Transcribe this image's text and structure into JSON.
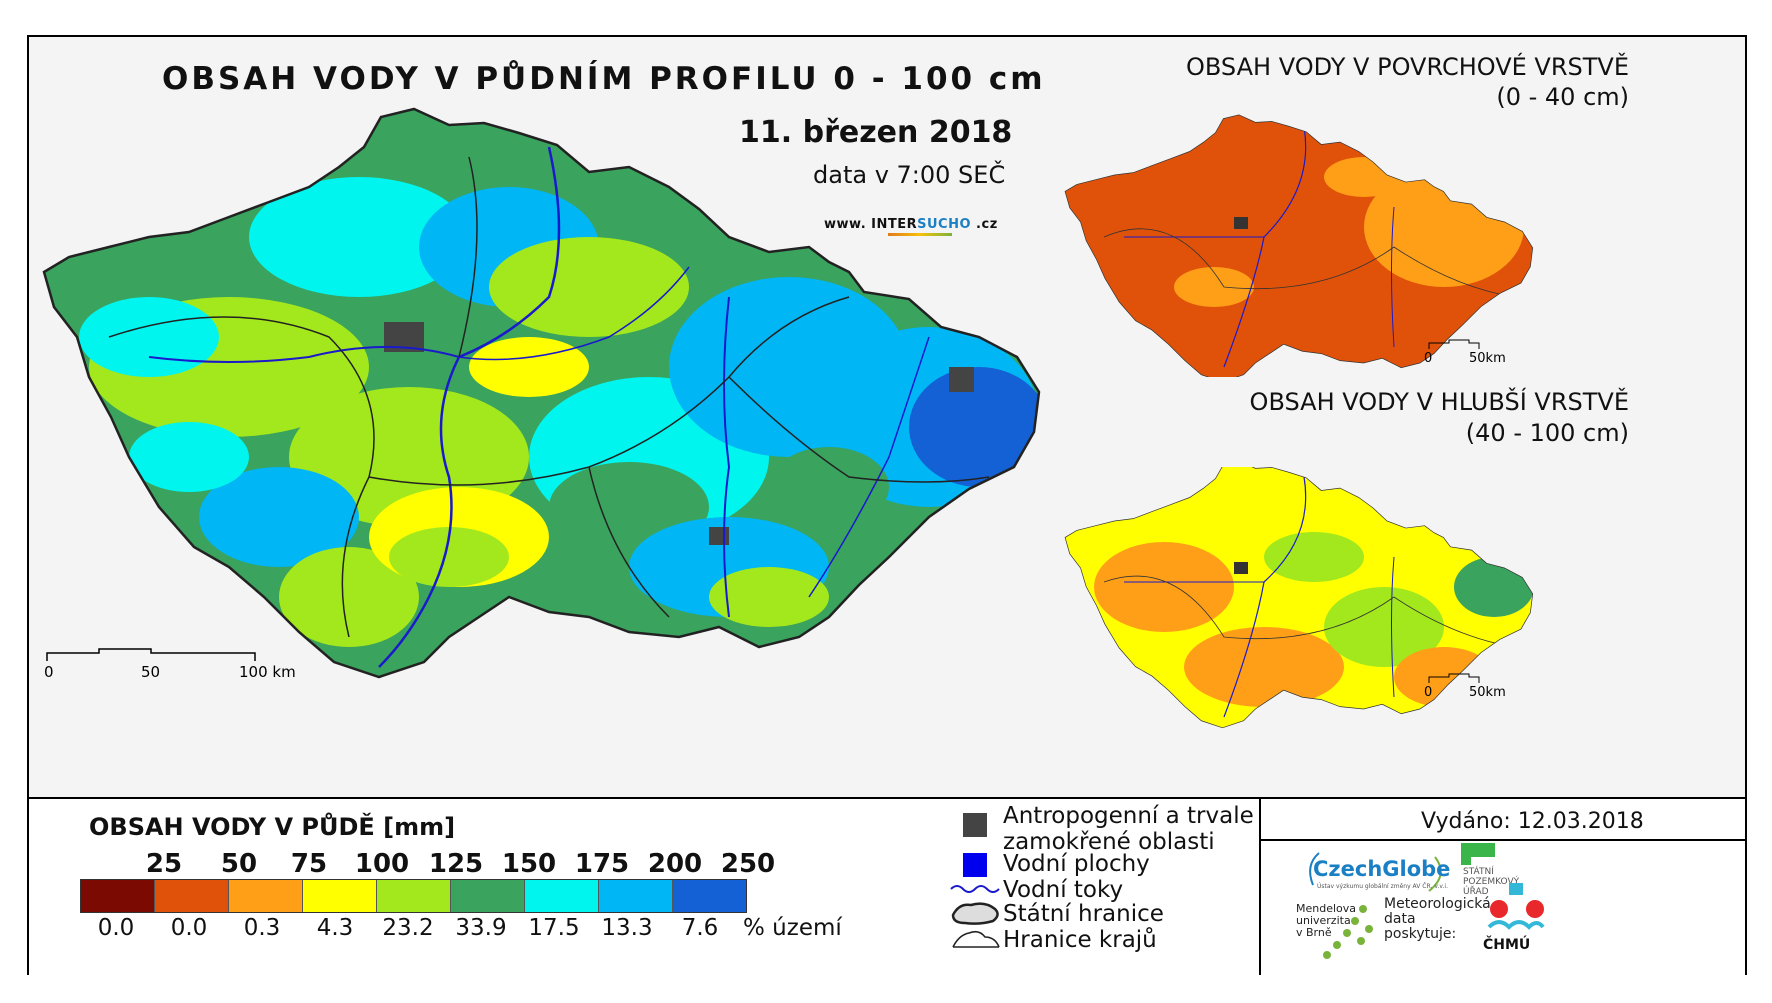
{
  "title": "OBSAH VODY V PŮDNÍM PROFILU 0 - 100 cm",
  "date": "11. březen 2018",
  "time": "data v 7:00 SEČ",
  "website": {
    "prefix": "www. INTER",
    "highlight": "SUCHO",
    "suffix": " .cz"
  },
  "main_scale": {
    "labels": [
      "0",
      "50",
      "100 km"
    ]
  },
  "inset_top": {
    "title": "OBSAH VODY V POVRCHOVÉ VRSTVĚ",
    "subtitle": "(0 - 40 cm)",
    "scale": [
      "0",
      "50km"
    ]
  },
  "inset_bottom": {
    "title": "OBSAH VODY V HLUBŠÍ VRSTVĚ",
    "subtitle": "(40 - 100 cm)",
    "scale": [
      "0",
      "50km"
    ]
  },
  "legend": {
    "title": "OBSAH VODY V PŮDĚ [mm]",
    "class_breaks": [
      "25",
      "50",
      "75",
      "100",
      "125",
      "150",
      "175",
      "200",
      "250"
    ],
    "colors": [
      "#7b0a03",
      "#e0520a",
      "#ff9f17",
      "#ffff00",
      "#a3e81c",
      "#3aa35e",
      "#00f5ef",
      "#00b6f5",
      "#1461d6"
    ],
    "percentages": [
      "0.0",
      "0.0",
      "0.3",
      "4.3",
      "23.2",
      "33.9",
      "17.5",
      "13.3",
      "7.6"
    ],
    "percent_label": "% území"
  },
  "symbols": {
    "urban": "Antropogenní a trvale\nzamokřené oblasti",
    "water_bodies": "Vodní plochy",
    "rivers": "Vodní toky",
    "state_border": "Státní hranice",
    "region_border": "Hranice krajů"
  },
  "issued": "Vydáno: 12.03.2018",
  "logos": {
    "czechglobe": "CzechGlobe",
    "czechglobe_sub": "Ústav výzkumu globální změny AV ČR, v.v.i.",
    "spu": [
      "STÁTNÍ",
      "POZEMKOVÝ",
      "ÚŘAD"
    ],
    "mendel": [
      "Mendelova",
      "univerzita",
      "v Brně"
    ],
    "chmu_note": [
      "Meteorologická",
      "data",
      "poskytuje:"
    ],
    "chmu": "ČHMÚ"
  }
}
